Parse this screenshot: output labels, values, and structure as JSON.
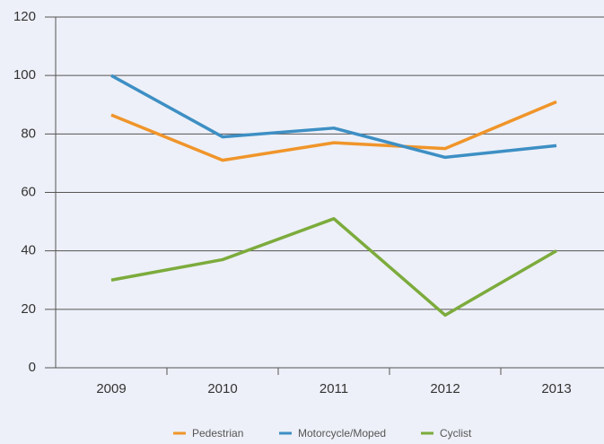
{
  "chart_data": {
    "type": "line",
    "categories": [
      "2009",
      "2010",
      "2011",
      "2012",
      "2013"
    ],
    "series": [
      {
        "name": "Pedestrian",
        "color": "#f0952a",
        "values": [
          86.5,
          71,
          77,
          75,
          91
        ]
      },
      {
        "name": "Motorcycle/Moped",
        "color": "#3d8fc4",
        "values": [
          100,
          79,
          82,
          72,
          76
        ]
      },
      {
        "name": "Cyclist",
        "color": "#7cab3c",
        "values": [
          30,
          37,
          51,
          18,
          40
        ]
      }
    ],
    "ylim": [
      0,
      120
    ],
    "yticks": [
      0,
      20,
      40,
      60,
      80,
      100,
      120
    ],
    "grid": true
  }
}
